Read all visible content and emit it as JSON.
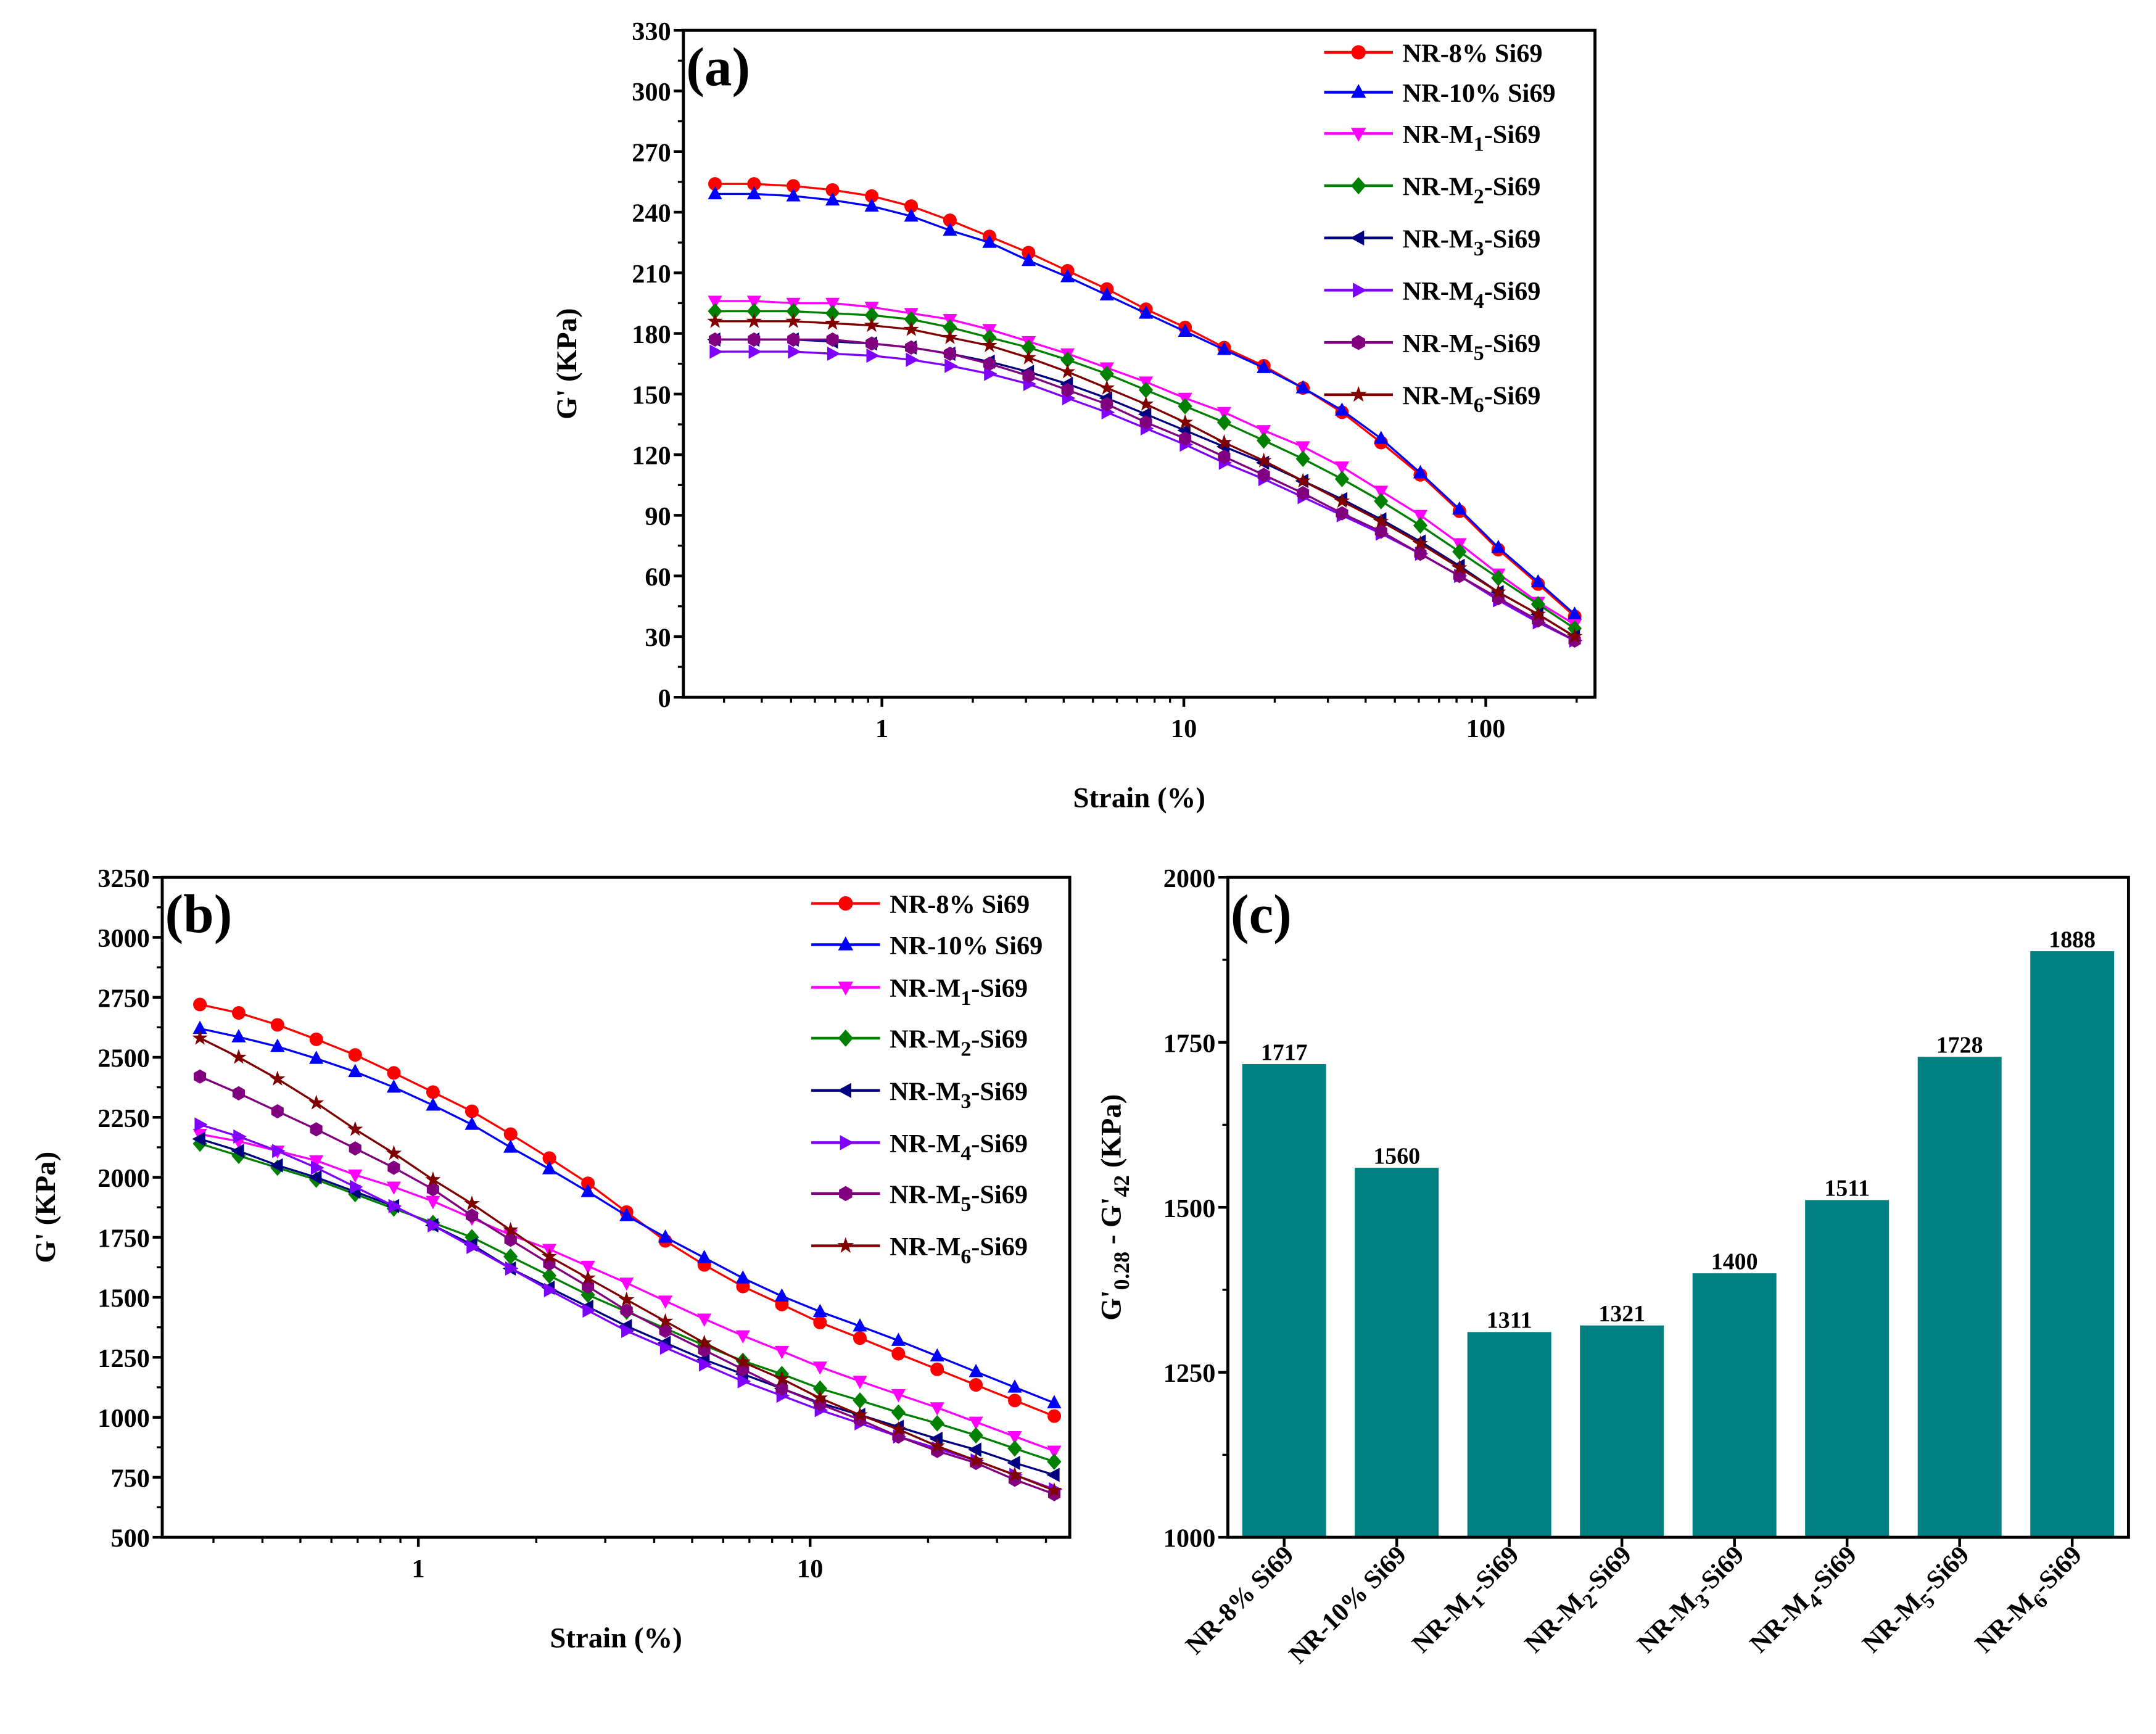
{
  "chart_data": [
    {
      "panel": "(a)",
      "type": "line",
      "xlabel": "Strain (%)",
      "ylabel": "G' (KPa)",
      "xscale": "log",
      "xlim": [
        0.22,
        230
      ],
      "ylim": [
        0,
        330
      ],
      "xticks": [
        "1",
        "10",
        "100"
      ],
      "yticks": [
        "0",
        "30",
        "60",
        "90",
        "120",
        "150",
        "180",
        "210",
        "240",
        "270",
        "300",
        "330"
      ],
      "legend_position": "top-right",
      "grid": false,
      "x": [
        0.28,
        0.377,
        0.509,
        0.686,
        0.925,
        1.25,
        1.68,
        2.27,
        3.06,
        4.12,
        5.56,
        7.49,
        10.1,
        13.6,
        18.4,
        24.8,
        33.4,
        45.0,
        60.7,
        81.8,
        110,
        149,
        197
      ],
      "series": [
        {
          "name": "NR-8% Si69",
          "color": "#ff0000",
          "marker": "circle",
          "values": [
            254,
            254,
            253,
            251,
            248,
            243,
            236,
            228,
            220,
            211,
            202,
            192,
            183,
            173,
            164,
            153,
            141,
            126,
            110,
            92,
            73,
            56,
            40
          ]
        },
        {
          "name": "NR-10% Si69",
          "color": "#0000ff",
          "marker": "triangle-up",
          "values": [
            249,
            249,
            248,
            246,
            243,
            238,
            231,
            225,
            216,
            208,
            199,
            190,
            181,
            172,
            163,
            153,
            142,
            128,
            111,
            93,
            74,
            57,
            41
          ]
        },
        {
          "name": "NR-M1-Si69",
          "color": "#ff00ff",
          "marker": "triangle-down",
          "values": [
            196,
            196,
            195,
            195,
            193,
            190,
            187,
            182,
            176,
            170,
            163,
            156,
            148,
            141,
            132,
            124,
            114,
            102,
            90,
            76,
            61,
            47,
            36
          ]
        },
        {
          "name": "NR-M2-Si69",
          "color": "#008000",
          "marker": "diamond",
          "values": [
            191,
            191,
            191,
            190,
            189,
            187,
            183,
            178,
            173,
            167,
            160,
            152,
            144,
            136,
            127,
            118,
            108,
            97,
            85,
            72,
            59,
            46,
            34
          ]
        },
        {
          "name": "NR-M3-Si69",
          "color": "#000080",
          "marker": "triangle-left",
          "values": [
            177,
            177,
            177,
            176,
            175,
            173,
            170,
            166,
            161,
            155,
            148,
            140,
            132,
            124,
            116,
            107,
            98,
            88,
            77,
            65,
            52,
            41,
            30
          ]
        },
        {
          "name": "NR-M4-Si69",
          "color": "#8000ff",
          "marker": "triangle-right",
          "values": [
            171,
            171,
            171,
            170,
            169,
            167,
            164,
            160,
            155,
            148,
            141,
            133,
            125,
            116,
            108,
            99,
            90,
            81,
            71,
            60,
            48,
            37,
            28
          ]
        },
        {
          "name": "NR-M5-Si69",
          "color": "#800080",
          "marker": "hexagon",
          "values": [
            177,
            177,
            177,
            177,
            175,
            173,
            170,
            165,
            159,
            152,
            145,
            136,
            128,
            119,
            110,
            101,
            91,
            82,
            71,
            60,
            49,
            38,
            28
          ]
        },
        {
          "name": "NR-M6-Si69",
          "color": "#800000",
          "marker": "star",
          "values": [
            186,
            186,
            186,
            185,
            184,
            182,
            178,
            174,
            168,
            161,
            153,
            145,
            136,
            126,
            117,
            107,
            97,
            87,
            76,
            64,
            52,
            41,
            30
          ]
        }
      ]
    },
    {
      "panel": "(b)",
      "type": "line",
      "xlabel": "Strain (%)",
      "ylabel": "G' (KPa)",
      "xscale": "log",
      "xlim": [
        0.222,
        46
      ],
      "ylim": [
        500,
        3250
      ],
      "xticks": [
        "1",
        "10"
      ],
      "yticks": [
        "500",
        "750",
        "1000",
        "1250",
        "1500",
        "1750",
        "2000",
        "2250",
        "2500",
        "2750",
        "3000",
        "3250"
      ],
      "legend_position": "top-right",
      "grid": false,
      "x": [
        0.277,
        0.348,
        0.437,
        0.549,
        0.69,
        0.866,
        1.09,
        1.37,
        1.72,
        2.16,
        2.71,
        3.4,
        4.27,
        5.37,
        6.74,
        8.47,
        10.6,
        13.4,
        16.8,
        21.1,
        26.5,
        33.3,
        42
      ],
      "series": [
        {
          "name": "NR-8% Si69",
          "color": "#ff0000",
          "marker": "circle",
          "values": [
            2720,
            2685,
            2635,
            2575,
            2510,
            2435,
            2355,
            2275,
            2180,
            2080,
            1975,
            1855,
            1735,
            1635,
            1545,
            1470,
            1395,
            1330,
            1265,
            1200,
            1135,
            1070,
            1005
          ]
        },
        {
          "name": "NR-10% Si69",
          "color": "#0000ff",
          "marker": "triangle-up",
          "values": [
            2620,
            2585,
            2545,
            2495,
            2440,
            2375,
            2300,
            2220,
            2125,
            2035,
            1940,
            1840,
            1750,
            1665,
            1580,
            1505,
            1440,
            1380,
            1320,
            1255,
            1190,
            1125,
            1060
          ]
        },
        {
          "name": "NR-M1-Si69",
          "color": "#ff00ff",
          "marker": "triangle-down",
          "values": [
            2180,
            2150,
            2110,
            2070,
            2010,
            1960,
            1900,
            1830,
            1760,
            1700,
            1630,
            1560,
            1485,
            1410,
            1340,
            1275,
            1210,
            1150,
            1095,
            1040,
            980,
            920,
            860
          ]
        },
        {
          "name": "NR-M2-Si69",
          "color": "#008000",
          "marker": "diamond",
          "values": [
            2140,
            2090,
            2040,
            1990,
            1930,
            1870,
            1810,
            1750,
            1670,
            1590,
            1510,
            1440,
            1370,
            1300,
            1235,
            1180,
            1120,
            1070,
            1020,
            975,
            925,
            870,
            815
          ]
        },
        {
          "name": "NR-M3-Si69",
          "color": "#000080",
          "marker": "triangle-left",
          "values": [
            2160,
            2110,
            2050,
            2000,
            1940,
            1880,
            1800,
            1720,
            1620,
            1540,
            1460,
            1380,
            1310,
            1240,
            1180,
            1120,
            1060,
            1010,
            960,
            910,
            865,
            810,
            760
          ]
        },
        {
          "name": "NR-M4-Si69",
          "color": "#8000ff",
          "marker": "triangle-right",
          "values": [
            2220,
            2170,
            2110,
            2040,
            1960,
            1880,
            1800,
            1710,
            1620,
            1530,
            1445,
            1360,
            1290,
            1220,
            1150,
            1090,
            1030,
            975,
            920,
            870,
            820,
            760,
            700
          ]
        },
        {
          "name": "NR-M5-Si69",
          "color": "#800080",
          "marker": "hexagon",
          "values": [
            2420,
            2350,
            2275,
            2200,
            2120,
            2040,
            1950,
            1840,
            1740,
            1640,
            1545,
            1445,
            1360,
            1280,
            1200,
            1120,
            1055,
            990,
            920,
            860,
            810,
            740,
            680
          ]
        },
        {
          "name": "NR-M6-Si69",
          "color": "#800000",
          "marker": "star",
          "values": [
            2580,
            2500,
            2410,
            2310,
            2200,
            2100,
            1990,
            1890,
            1780,
            1670,
            1580,
            1490,
            1400,
            1310,
            1230,
            1160,
            1080,
            1010,
            950,
            880,
            820,
            760,
            695
          ]
        }
      ]
    },
    {
      "panel": "(c)",
      "type": "bar",
      "ylabel_parts": [
        "G'",
        "0.28",
        " - G'",
        "42",
        " (KPa)"
      ],
      "ylim": [
        1000,
        2000
      ],
      "yticks": [
        "1000",
        "1250",
        "1500",
        "1750",
        "2000"
      ],
      "bar_color": "#008080",
      "grid": false,
      "categories": [
        "NR-8% Si69",
        "NR-10% Si69",
        "NR-M1-Si69",
        "NR-M2-Si69",
        "NR-M3-Si69",
        "NR-M4-Si69",
        "NR-M5-Si69",
        "NR-M6-Si69"
      ],
      "values": [
        1717,
        1560,
        1311,
        1321,
        1400,
        1511,
        1728,
        1888
      ]
    }
  ]
}
